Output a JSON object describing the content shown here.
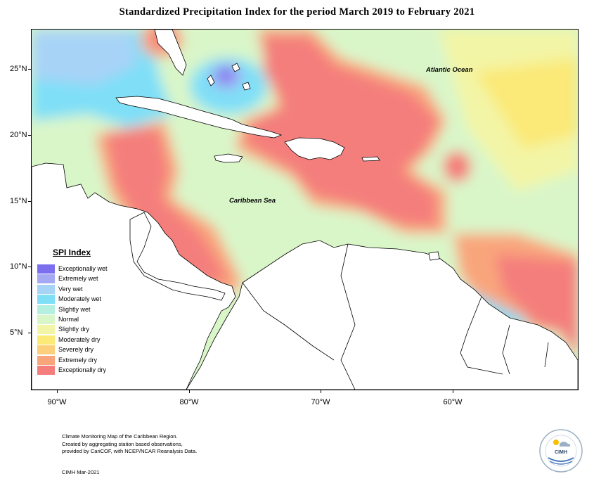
{
  "title": "Standardized Precipitation Index for the period March 2019 to February 2021",
  "map": {
    "latitude_labels": [
      "25°N",
      "20°N",
      "15°N",
      "10°N",
      "5°N"
    ],
    "longitude_labels": [
      "90°W",
      "80°W",
      "70°W",
      "60°W"
    ],
    "place_labels": {
      "atlantic": "Atlantic Ocean",
      "caribbean": "Caribbean Sea"
    }
  },
  "legend": {
    "title": "SPI Index",
    "items": [
      {
        "label": "Exceptionally wet",
        "color": "#7b6ff0"
      },
      {
        "label": "Extremely wet",
        "color": "#a5a9f2"
      },
      {
        "label": "Very wet",
        "color": "#a7d3f7"
      },
      {
        "label": "Moderately wet",
        "color": "#7fdff7"
      },
      {
        "label": "Slightly wet",
        "color": "#b5efdf"
      },
      {
        "label": "Normal",
        "color": "#d9f6c9"
      },
      {
        "label": "Slightly dry",
        "color": "#f3f5a6"
      },
      {
        "label": "Moderately dry",
        "color": "#fbe978"
      },
      {
        "label": "Severely dry",
        "color": "#fbcf7c"
      },
      {
        "label": "Extremely dry",
        "color": "#f9a57c"
      },
      {
        "label": "Exceptionally dry",
        "color": "#f47e7b"
      }
    ]
  },
  "footer": {
    "line1": "Climate Monitoring Map of the Caribbean Region.",
    "line2": "Created by aggregating station based observations,",
    "line3": "provided by CariCOF, with NCEP/NCAR Reanalysis Data.",
    "credit": "CIMH Mar-2021",
    "logo_text": "CIMH"
  }
}
